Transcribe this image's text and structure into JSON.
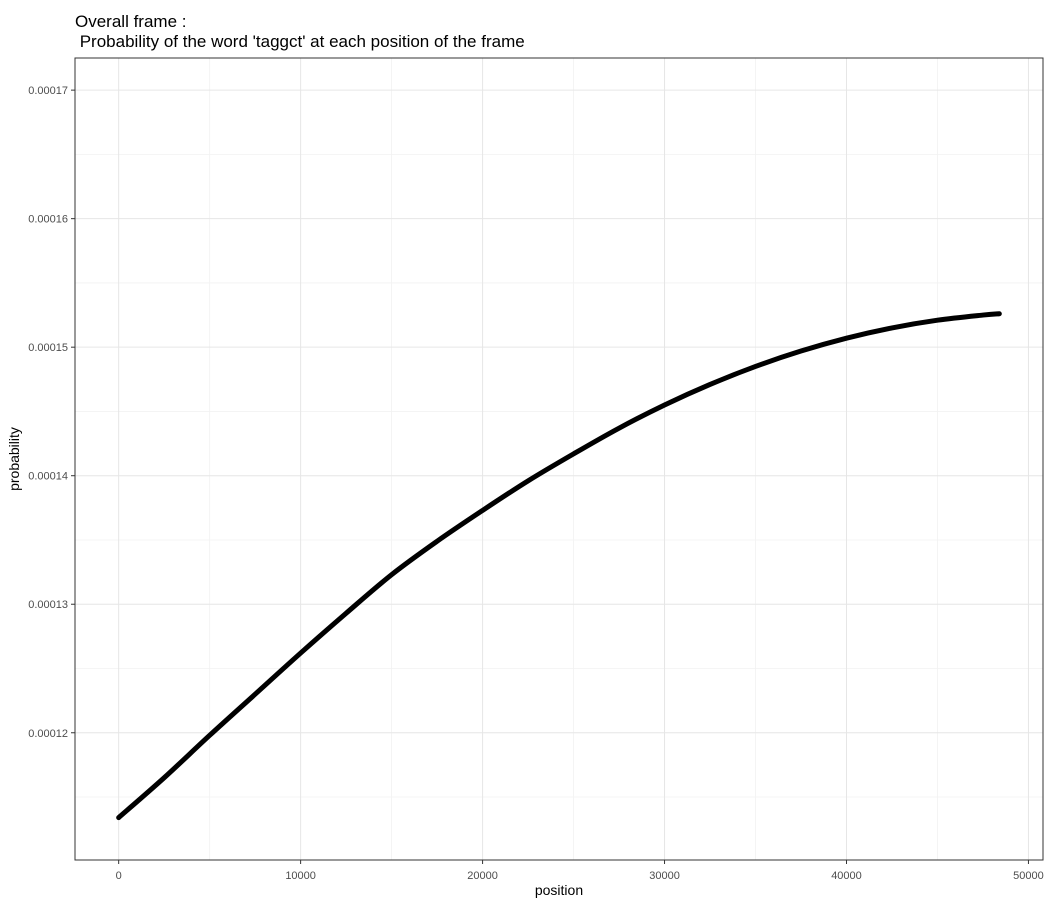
{
  "chart_data": {
    "type": "line",
    "title": "Overall frame :",
    "subtitle": " Probability of the word 'taggct' at each position of the frame",
    "xlabel": "position",
    "ylabel": "probability",
    "xlim": [
      -2400,
      50800
    ],
    "ylim": [
      0.0001101,
      0.0001725
    ],
    "x_ticks": [
      0,
      10000,
      20000,
      30000,
      40000,
      50000
    ],
    "x_tick_labels": [
      "0",
      "10000",
      "20000",
      "30000",
      "40000",
      "50000"
    ],
    "y_ticks": [
      0.00012,
      0.00013,
      0.00014,
      0.00015,
      0.00016,
      0.00017
    ],
    "y_tick_labels": [
      "0.00012",
      "0.00013",
      "0.00014",
      "0.00015",
      "0.00016",
      "0.00017"
    ],
    "grid": true,
    "series": [
      {
        "color": "#000000",
        "points": [
          [
            0,
            0.0001134
          ],
          [
            2500,
            0.0001165
          ],
          [
            5000,
            0.0001198
          ],
          [
            7500,
            0.000123
          ],
          [
            10000,
            0.0001262
          ],
          [
            12500,
            0.0001293
          ],
          [
            15000,
            0.0001323
          ],
          [
            17500,
            0.0001349
          ],
          [
            20000,
            0.0001373
          ],
          [
            22500,
            0.0001396
          ],
          [
            25000,
            0.0001417
          ],
          [
            27500,
            0.0001437
          ],
          [
            30000,
            0.0001455
          ],
          [
            32500,
            0.0001471
          ],
          [
            35000,
            0.0001485
          ],
          [
            37500,
            0.0001497
          ],
          [
            40000,
            0.0001507
          ],
          [
            42500,
            0.0001515
          ],
          [
            45000,
            0.0001521
          ],
          [
            47500,
            0.0001525
          ],
          [
            48400,
            0.0001526
          ]
        ]
      }
    ]
  }
}
